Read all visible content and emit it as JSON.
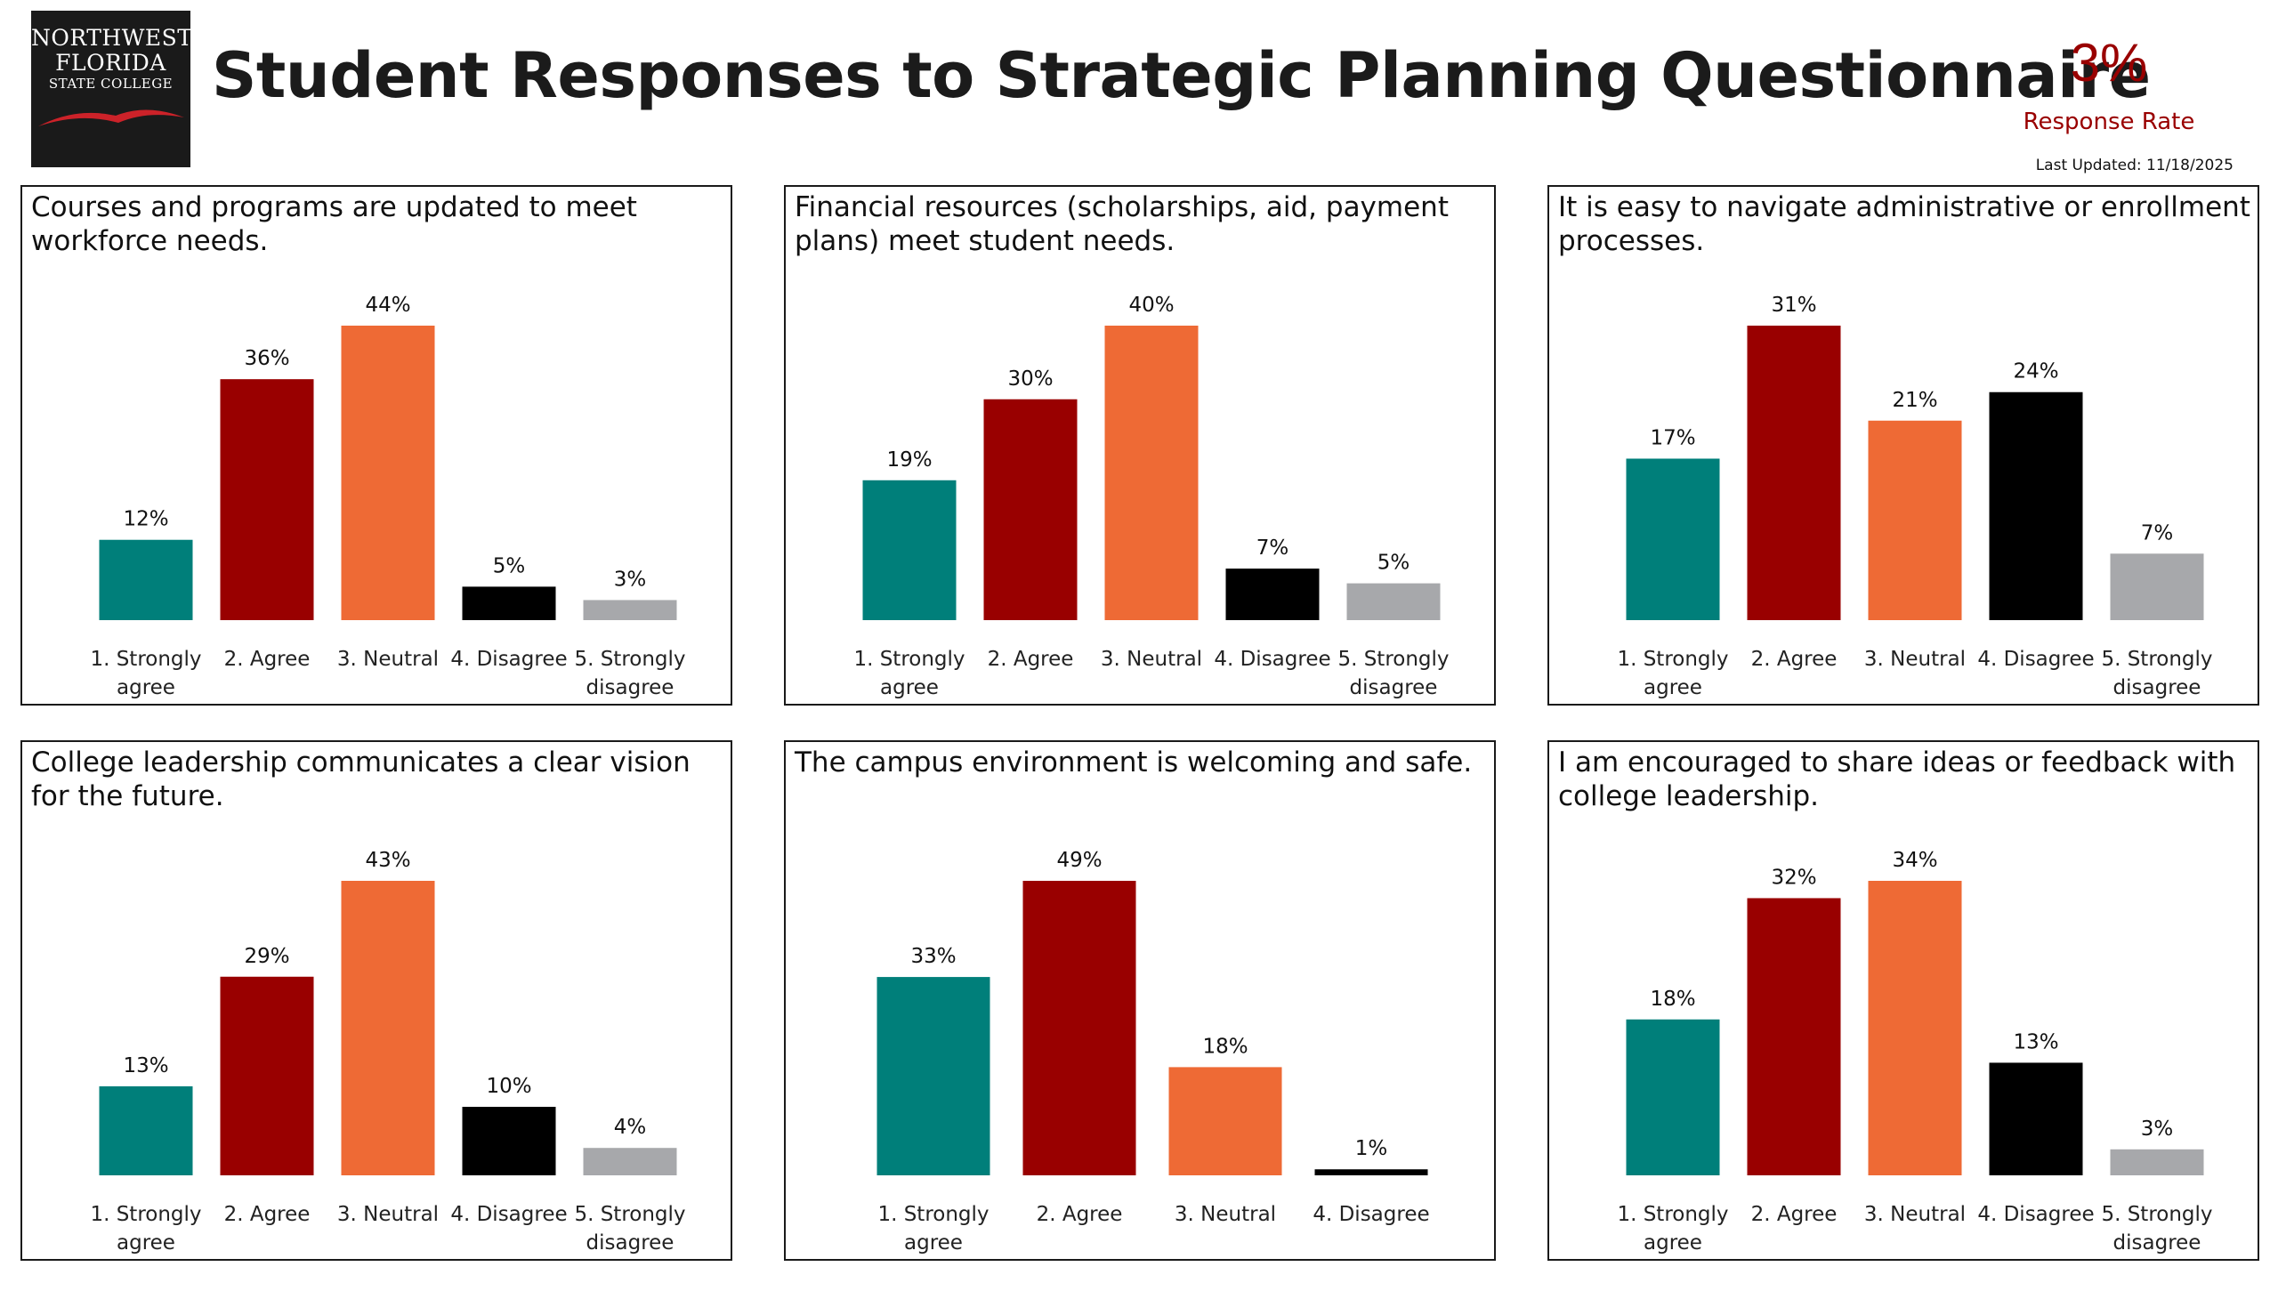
{
  "header": {
    "logo": {
      "line1": "NORTHWEST",
      "line2": "FLORIDA",
      "line3": "STATE COLLEGE"
    },
    "title": "Student Responses to Strategic Planning Questionnaire",
    "response_rate": {
      "value": "3%",
      "label": "Response Rate"
    },
    "last_updated": "Last Updated: 11/18/2025"
  },
  "colors": {
    "strongly_agree": "#007f7a",
    "agree": "#990000",
    "neutral": "#ee6a35",
    "disagree": "#000000",
    "strongly_disagree": "#a7a8ab",
    "accent": "#990000"
  },
  "chart_data": [
    {
      "type": "bar",
      "title": "Courses and programs are updated to meet workforce needs.",
      "categories": [
        "1. Strongly agree",
        "2. Agree",
        "3. Neutral",
        "4. Disagree",
        "5. Strongly disagree"
      ],
      "values": [
        12,
        36,
        44,
        5,
        3
      ],
      "labels": [
        "12%",
        "36%",
        "44%",
        "5%",
        "3%"
      ],
      "ylim": [
        0,
        44
      ],
      "grid": false,
      "legend": "none"
    },
    {
      "type": "bar",
      "title": "Financial resources (scholarships, aid, payment plans) meet student needs.",
      "categories": [
        "1. Strongly agree",
        "2. Agree",
        "3. Neutral",
        "4. Disagree",
        "5. Strongly disagree"
      ],
      "values": [
        19,
        30,
        40,
        7,
        5
      ],
      "labels": [
        "19%",
        "30%",
        "40%",
        "7%",
        "5%"
      ],
      "ylim": [
        0,
        40
      ],
      "grid": false,
      "legend": "none"
    },
    {
      "type": "bar",
      "title": "It is easy to navigate administrative or enrollment processes.",
      "categories": [
        "1. Strongly agree",
        "2. Agree",
        "3. Neutral",
        "4. Disagree",
        "5. Strongly disagree"
      ],
      "values": [
        17,
        31,
        21,
        24,
        7
      ],
      "labels": [
        "17%",
        "31%",
        "21%",
        "24%",
        "7%"
      ],
      "ylim": [
        0,
        31
      ],
      "grid": false,
      "legend": "none"
    },
    {
      "type": "bar",
      "title": "College leadership communicates a clear vision for the future.",
      "categories": [
        "1. Strongly agree",
        "2. Agree",
        "3. Neutral",
        "4. Disagree",
        "5. Strongly disagree"
      ],
      "values": [
        13,
        29,
        43,
        10,
        4
      ],
      "labels": [
        "13%",
        "29%",
        "43%",
        "10%",
        "4%"
      ],
      "ylim": [
        0,
        43
      ],
      "grid": false,
      "legend": "none"
    },
    {
      "type": "bar",
      "title": "The campus environment is welcoming and safe.",
      "categories": [
        "1. Strongly agree",
        "2. Agree",
        "3. Neutral",
        "4. Disagree"
      ],
      "values": [
        33,
        49,
        18,
        1
      ],
      "labels": [
        "33%",
        "49%",
        "18%",
        "1%"
      ],
      "ylim": [
        0,
        49
      ],
      "grid": false,
      "legend": "none"
    },
    {
      "type": "bar",
      "title": "I am encouraged to share ideas or feedback with college leadership.",
      "categories": [
        "1. Strongly agree",
        "2. Agree",
        "3. Neutral",
        "4. Disagree",
        "5. Strongly disagree"
      ],
      "values": [
        18,
        32,
        34,
        13,
        3
      ],
      "labels": [
        "18%",
        "32%",
        "34%",
        "13%",
        "3%"
      ],
      "ylim": [
        0,
        34
      ],
      "grid": false,
      "legend": "none"
    }
  ]
}
